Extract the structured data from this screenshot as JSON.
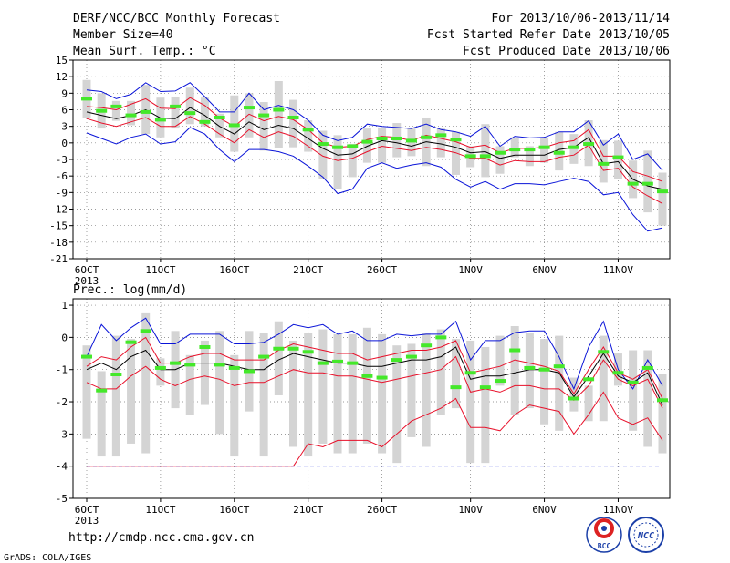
{
  "header": {
    "title": "DERF/NCC/BCC Monthly Forecast",
    "member_size": "Member Size=40",
    "var1": "Mean Surf. Temp.: °C",
    "for_range": "For 2013/10/06-2013/11/14",
    "fcst_started": "Fcst Started Refer Date 2013/10/05",
    "fcst_produced": "Fcst Produced Date 2013/10/06"
  },
  "footer": {
    "url": "http://cmdp.ncc.cma.gov.cn",
    "credit": "GrADS: COLA/IGES",
    "logo_bcc": "BCC",
    "logo_ncc": "NCC"
  },
  "colors": {
    "box": "#d4d4d4",
    "median": "#000000",
    "quartile": "#e8102a",
    "extreme": "#0a14d8",
    "ens": "#44e82a",
    "grid": "#7a7a7a"
  },
  "chart_data": [
    {
      "type": "line",
      "title": "Mean Surf. Temp.: °C",
      "x": [
        "6OCT",
        "7OCT",
        "8OCT",
        "9OCT",
        "10OCT",
        "11OCT",
        "12OCT",
        "13OCT",
        "14OCT",
        "15OCT",
        "16OCT",
        "17OCT",
        "18OCT",
        "19OCT",
        "20OCT",
        "21OCT",
        "22OCT",
        "23OCT",
        "24OCT",
        "25OCT",
        "26OCT",
        "27OCT",
        "28OCT",
        "29OCT",
        "30OCT",
        "31OCT",
        "1NOV",
        "2NOV",
        "3NOV",
        "4NOV",
        "5NOV",
        "6NOV",
        "7NOV",
        "8NOV",
        "9NOV",
        "10NOV",
        "11NOV",
        "12NOV",
        "13NOV",
        "14NOV"
      ],
      "x_ticks": [
        "6OCT",
        "11OCT",
        "16OCT",
        "21OCT",
        "26OCT",
        "1NOV",
        "6NOV",
        "11NOV"
      ],
      "x_year": "2013",
      "ylim": [
        -21,
        15
      ],
      "yticks": [
        15,
        12,
        9,
        6,
        3,
        0,
        -3,
        -6,
        -9,
        -12,
        -15,
        -18,
        -21
      ],
      "grid": true,
      "series": [
        {
          "role": "max",
          "values": [
            9.6,
            9.3,
            8,
            8.8,
            10.9,
            9.3,
            9.4,
            10.9,
            8.4,
            5.6,
            5.6,
            9,
            6,
            6.8,
            6,
            4.1,
            1.4,
            0.4,
            1,
            3.4,
            3,
            2.8,
            2.6,
            3.4,
            2.4,
            2,
            1.2,
            3,
            -0.6,
            1.2,
            0.9,
            1,
            2,
            2,
            4,
            -0.4,
            1.6,
            -3,
            -2,
            -5
          ]
        },
        {
          "role": "q3",
          "values": [
            6.6,
            6.4,
            6,
            7,
            8,
            6.3,
            6.2,
            8.2,
            6.8,
            4.5,
            3,
            5.2,
            4,
            4.8,
            4.2,
            2.4,
            0,
            -0.8,
            -0.6,
            0.6,
            1.2,
            1,
            0.4,
            1.4,
            0.8,
            0.2,
            -0.8,
            -0.4,
            -1.8,
            -1,
            -1,
            -0.8,
            0,
            0.4,
            2.4,
            -2.4,
            -2.4,
            -5.2,
            -6,
            -7
          ]
        },
        {
          "role": "median",
          "values": [
            5.6,
            5,
            4.4,
            5,
            6,
            4.5,
            4.4,
            6.4,
            5,
            3,
            1.6,
            3.8,
            2.4,
            3.2,
            2.6,
            0.8,
            -1,
            -2.2,
            -2,
            -0.6,
            0.4,
            0,
            -0.6,
            0.2,
            -0.2,
            -0.8,
            -1.8,
            -1.6,
            -2.8,
            -2.2,
            -2.2,
            -2.2,
            -1.2,
            -0.8,
            1,
            -3.8,
            -3.4,
            -6.6,
            -7.8,
            -8.4
          ]
        },
        {
          "role": "q1",
          "values": [
            4.4,
            3.6,
            3,
            3.8,
            4.6,
            3,
            3,
            4.8,
            3.4,
            1.6,
            0,
            2.4,
            1,
            2,
            1.2,
            -0.6,
            -2.4,
            -3.2,
            -2.8,
            -1.6,
            -0.6,
            -1,
            -1.4,
            -0.8,
            -1.2,
            -1.8,
            -2.8,
            -2.8,
            -4,
            -3.2,
            -3.4,
            -3.4,
            -2.6,
            -2.2,
            -0.4,
            -5,
            -4.6,
            -8,
            -9.6,
            -11
          ]
        },
        {
          "role": "min",
          "values": [
            1.8,
            0.8,
            -0.2,
            1,
            1.6,
            -0.2,
            0.2,
            2.8,
            1.6,
            -1.2,
            -3.4,
            -1.2,
            -1.2,
            -1.6,
            -2.4,
            -4.2,
            -6.2,
            -9.2,
            -8.4,
            -4.6,
            -3.6,
            -4.6,
            -4,
            -3.6,
            -4.4,
            -6.6,
            -8,
            -7,
            -8.4,
            -7.4,
            -7.4,
            -7.6,
            -7,
            -6.4,
            -7,
            -9.4,
            -9,
            -13,
            -16,
            -15.4
          ]
        },
        {
          "role": "ens_mean",
          "values": [
            8,
            5.8,
            6.6,
            5,
            5.6,
            4.2,
            6.6,
            5.4,
            3.8,
            4.6,
            3.2,
            6.4,
            5,
            6,
            4.6,
            2.4,
            -0.2,
            -0.8,
            -0.6,
            0.2,
            0.8,
            0.8,
            0.4,
            1,
            1.4,
            0.6,
            -2.4,
            -2.4,
            -1.8,
            -1.2,
            -1.2,
            -0.8,
            -1.8,
            -0.8,
            -0.2,
            -3.8,
            -2.6,
            -7.4,
            -7.4,
            -8.8
          ]
        },
        {
          "role": "box_high",
          "values": [
            11.4,
            9,
            7.6,
            7.6,
            10.5,
            8.2,
            8.4,
            10,
            8.2,
            5.3,
            8.6,
            9,
            7.4,
            11.2,
            7.8,
            4.1,
            2.2,
            1.4,
            -0.2,
            2.6,
            2.8,
            3.6,
            2.6,
            4.6,
            2.6,
            2,
            -0.6,
            3.4,
            -0.6,
            1,
            -0.6,
            1,
            2,
            1.6,
            4.1,
            0.5,
            0.4,
            -3.2,
            -1.4,
            -5.4
          ]
        },
        {
          "role": "box_low",
          "values": [
            4.6,
            2.6,
            4,
            3.2,
            1.6,
            1,
            2.6,
            3.4,
            3,
            1,
            -1.6,
            1,
            -1.4,
            -1,
            -0.8,
            -1.6,
            -6.6,
            -8.4,
            -6.2,
            -3.6,
            -3.6,
            -2.6,
            -2.4,
            -4.2,
            -2.6,
            -5.8,
            -4.4,
            -6.2,
            -5.6,
            -2.6,
            -4.2,
            -3.6,
            -5,
            -3.8,
            -4.2,
            -7.2,
            -6.6,
            -10,
            -12.6,
            -15
          ]
        }
      ]
    },
    {
      "type": "line",
      "title": "Prec.: log(mm/d)",
      "x": [
        "6OCT",
        "7OCT",
        "8OCT",
        "9OCT",
        "10OCT",
        "11OCT",
        "12OCT",
        "13OCT",
        "14OCT",
        "15OCT",
        "16OCT",
        "17OCT",
        "18OCT",
        "19OCT",
        "20OCT",
        "21OCT",
        "22OCT",
        "23OCT",
        "24OCT",
        "25OCT",
        "26OCT",
        "27OCT",
        "28OCT",
        "29OCT",
        "30OCT",
        "31OCT",
        "1NOV",
        "2NOV",
        "3NOV",
        "4NOV",
        "5NOV",
        "6NOV",
        "7NOV",
        "8NOV",
        "9NOV",
        "10NOV",
        "11NOV",
        "12NOV",
        "13NOV",
        "14NOV"
      ],
      "x_ticks": [
        "6OCT",
        "11OCT",
        "16OCT",
        "21OCT",
        "26OCT",
        "1NOV",
        "6NOV",
        "11NOV"
      ],
      "x_year": "2013",
      "ylim": [
        -5,
        1.2
      ],
      "yticks": [
        1,
        0,
        -1,
        -2,
        -3,
        -4,
        -5
      ],
      "grid": true,
      "series": [
        {
          "role": "max",
          "values": [
            -0.6,
            0.4,
            -0.1,
            0.3,
            0.6,
            -0.2,
            -0.2,
            0.1,
            0.1,
            0.1,
            -0.2,
            -0.2,
            -0.15,
            0.1,
            0.4,
            0.3,
            0.4,
            0.1,
            0.2,
            -0.1,
            -0.1,
            0.1,
            0.05,
            0.1,
            0.1,
            0.5,
            -0.7,
            -0.1,
            -0.1,
            0.15,
            0.2,
            0.2,
            -0.6,
            -1.6,
            -0.3,
            0.5,
            -1,
            -1.6,
            -0.7,
            -1.5
          ]
        },
        {
          "role": "q3",
          "values": [
            -0.9,
            -0.6,
            -0.7,
            -0.3,
            0,
            -0.8,
            -0.8,
            -0.6,
            -0.5,
            -0.5,
            -0.7,
            -0.7,
            -0.7,
            -0.4,
            -0.2,
            -0.3,
            -0.4,
            -0.5,
            -0.5,
            -0.7,
            -0.6,
            -0.5,
            -0.4,
            -0.4,
            -0.3,
            -0.1,
            -1.1,
            -1,
            -0.9,
            -0.7,
            -0.8,
            -0.9,
            -1.05,
            -1.75,
            -1,
            -0.3,
            -1.1,
            -1.3,
            -1,
            -1.9
          ]
        },
        {
          "role": "median",
          "values": [
            -1,
            -0.8,
            -1,
            -0.6,
            -0.4,
            -1,
            -1,
            -0.8,
            -0.8,
            -0.8,
            -0.9,
            -1,
            -1,
            -0.7,
            -0.5,
            -0.6,
            -0.7,
            -0.8,
            -0.8,
            -0.9,
            -0.9,
            -0.8,
            -0.7,
            -0.7,
            -0.6,
            -0.3,
            -1.3,
            -1.2,
            -1.2,
            -1.1,
            -1,
            -1,
            -1.1,
            -1.85,
            -1.2,
            -0.5,
            -1.2,
            -1.4,
            -1.1,
            -2.1
          ]
        },
        {
          "role": "q1",
          "values": [
            -1.4,
            -1.6,
            -1.6,
            -1.2,
            -0.9,
            -1.3,
            -1.5,
            -1.3,
            -1.2,
            -1.3,
            -1.5,
            -1.4,
            -1.4,
            -1.2,
            -1,
            -1.1,
            -1.1,
            -1.2,
            -1.2,
            -1.3,
            -1.4,
            -1.3,
            -1.2,
            -1.1,
            -1,
            -0.6,
            -1.7,
            -1.6,
            -1.7,
            -1.5,
            -1.5,
            -1.6,
            -1.6,
            -1.95,
            -1.5,
            -0.7,
            -1.3,
            -1.5,
            -1.3,
            -2.2
          ]
        },
        {
          "role": "min",
          "values": [
            -4,
            -4,
            -4,
            -4,
            -4,
            -4,
            -4,
            -4,
            -4,
            -4,
            -4,
            -4,
            -4,
            -4,
            -4,
            -3.3,
            -3.4,
            -3.2,
            -3.2,
            -3.2,
            -3.4,
            -3,
            -2.6,
            -2.4,
            -2.2,
            -1.9,
            -2.8,
            -2.8,
            -2.9,
            -2.4,
            -2.1,
            -2.2,
            -2.3,
            -3,
            -2.4,
            -1.7,
            -2.5,
            -2.7,
            -2.5,
            -3.2
          ]
        },
        {
          "role": "ens_mean",
          "values": [
            -0.6,
            -1.65,
            -1.15,
            -0.15,
            0.2,
            -0.95,
            -0.8,
            -0.85,
            -0.3,
            -0.85,
            -0.95,
            -1.05,
            -0.6,
            -0.35,
            -0.35,
            -0.45,
            -0.8,
            -0.75,
            -0.8,
            -1.2,
            -1.25,
            -0.7,
            -0.6,
            -0.25,
            0,
            -1.55,
            -1.1,
            -1.55,
            -1.35,
            -0.4,
            -0.95,
            -1,
            -0.9,
            -1.9,
            -1.3,
            -0.45,
            -1.1,
            -1.4,
            -0.95,
            -1.95
          ]
        },
        {
          "role": "box_high",
          "values": [
            -0.25,
            -1.05,
            0.05,
            -0.05,
            0.75,
            -0.65,
            0.2,
            -0.55,
            -0.1,
            0.2,
            -0.55,
            0.2,
            0.15,
            0.5,
            -0.1,
            0.15,
            0.25,
            0.1,
            0.1,
            0.3,
            0.1,
            -0.25,
            -0.2,
            0.15,
            0.25,
            -0.05,
            -0.1,
            -0.3,
            0.05,
            0.35,
            0.15,
            -0.05,
            0.05,
            -1.25,
            -1.5,
            0.05,
            -0.5,
            -0.4,
            -0.4,
            -1.15
          ]
        },
        {
          "role": "box_low",
          "values": [
            -3.15,
            -3.7,
            -3.7,
            -3.3,
            -3.6,
            -1.5,
            -2.2,
            -2.4,
            -2.1,
            -3,
            -3.7,
            -2.3,
            -3.7,
            -1.8,
            -3.4,
            -3.7,
            -3.3,
            -3.6,
            -3.6,
            -3.3,
            -3.6,
            -3.9,
            -3.1,
            -3.4,
            -2.4,
            -2.2,
            -3.9,
            -3.9,
            -1.5,
            -2.4,
            -2.2,
            -2.7,
            -2.9,
            -2.3,
            -2.6,
            -2.6,
            -1.5,
            -2.9,
            -3.4,
            -3.6
          ]
        }
      ]
    }
  ]
}
